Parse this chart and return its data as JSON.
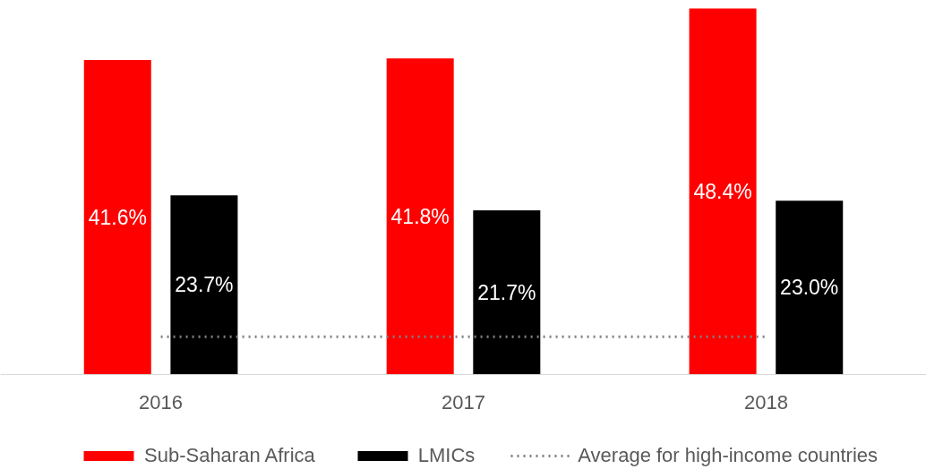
{
  "chart_data": {
    "type": "bar",
    "categories": [
      "2016",
      "2017",
      "2018"
    ],
    "series": [
      {
        "name": "Sub-Saharan Africa",
        "color": "#ff0000",
        "values": [
          41.6,
          41.8,
          48.4
        ],
        "value_labels": [
          "41.6%",
          "41.8%",
          "48.4%"
        ]
      },
      {
        "name": "LMICs",
        "color": "#000000",
        "values": [
          23.7,
          21.7,
          23.0
        ],
        "value_labels": [
          "23.7%",
          "21.7%",
          "23.0%"
        ]
      },
      {
        "name": "Average for high-income countries",
        "type": "line",
        "color": "#808080",
        "line_style": "dotted",
        "values": [
          5.0,
          5.0,
          5.0
        ]
      }
    ],
    "legend": "bottom",
    "grid": false
  }
}
